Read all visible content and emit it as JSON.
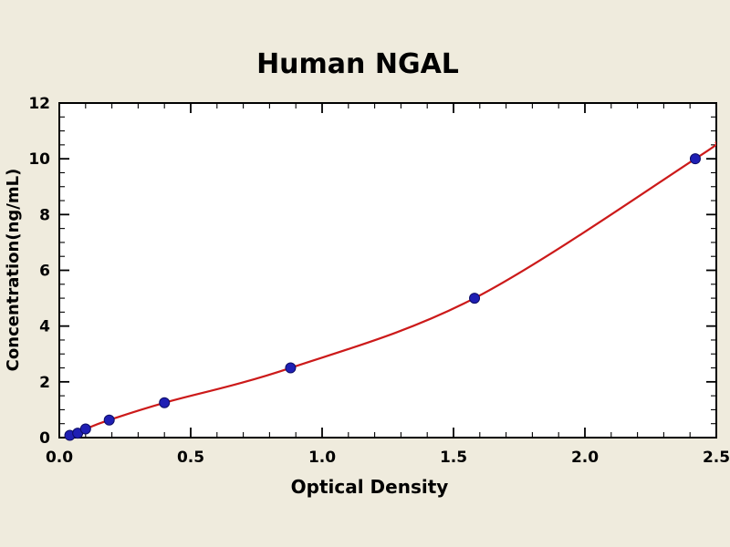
{
  "figure": {
    "title": "Human NGAL"
  },
  "chart_data": {
    "type": "scatter",
    "title": "Human NGAL",
    "xlabel": "Optical Density",
    "ylabel": "Concentration(ng/mL)",
    "xlim": [
      0.0,
      2.5
    ],
    "ylim": [
      0,
      12
    ],
    "x_ticks": [
      0.0,
      0.5,
      1.0,
      1.5,
      2.0,
      2.5
    ],
    "x_tick_labels": [
      "0.0",
      "0.5",
      "1.0",
      "1.5",
      "2.0",
      "2.5"
    ],
    "y_ticks": [
      0,
      2,
      4,
      6,
      8,
      10,
      12
    ],
    "y_tick_labels": [
      "0",
      "2",
      "4",
      "6",
      "8",
      "10",
      "12"
    ],
    "x_minor_step": 0.1,
    "y_minor_step": 0.5,
    "grid": false,
    "legend_position": "none",
    "background_color": "#efebdd",
    "plot_background_color": "#ffffff",
    "axis_color": "#000000",
    "series": [
      {
        "name": "standard-points",
        "type": "scatter",
        "marker": "circle",
        "marker_color": "#1f1fb4",
        "marker_edge_color": "#0d0d66",
        "points": [
          [
            0.04,
            0.08
          ],
          [
            0.07,
            0.16
          ],
          [
            0.1,
            0.31
          ],
          [
            0.19,
            0.63
          ],
          [
            0.4,
            1.25
          ],
          [
            0.88,
            2.5
          ],
          [
            1.58,
            5.0
          ],
          [
            2.42,
            10.0
          ]
        ]
      },
      {
        "name": "fitted-curve",
        "type": "line",
        "line_color": "#cc1a1a",
        "points": [
          [
            0.02,
            0.02
          ],
          [
            0.04,
            0.08
          ],
          [
            0.07,
            0.16
          ],
          [
            0.1,
            0.31
          ],
          [
            0.19,
            0.63
          ],
          [
            0.4,
            1.25
          ],
          [
            0.88,
            2.5
          ],
          [
            1.58,
            5.0
          ],
          [
            2.42,
            10.0
          ],
          [
            2.5,
            10.6
          ]
        ]
      }
    ]
  }
}
